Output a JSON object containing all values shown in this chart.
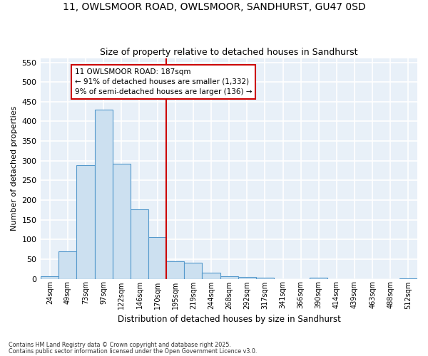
{
  "title1": "11, OWLSMOOR ROAD, OWLSMOOR, SANDHURST, GU47 0SD",
  "title2": "Size of property relative to detached houses in Sandhurst",
  "xlabel": "Distribution of detached houses by size in Sandhurst",
  "ylabel": "Number of detached properties",
  "bin_labels": [
    "24sqm",
    "49sqm",
    "73sqm",
    "97sqm",
    "122sqm",
    "146sqm",
    "170sqm",
    "195sqm",
    "219sqm",
    "244sqm",
    "268sqm",
    "292sqm",
    "317sqm",
    "341sqm",
    "366sqm",
    "390sqm",
    "414sqm",
    "439sqm",
    "463sqm",
    "488sqm",
    "512sqm"
  ],
  "bar_values": [
    7,
    70,
    288,
    430,
    293,
    177,
    105,
    45,
    40,
    16,
    7,
    4,
    2,
    0,
    0,
    2,
    0,
    0,
    0,
    0,
    1
  ],
  "bar_color": "#cce0f0",
  "bar_edge_color": "#5599cc",
  "vline_color": "#cc0000",
  "vline_x": 6.5,
  "annotation_text": "11 OWLSMOOR ROAD: 187sqm\n← 91% of detached houses are smaller (1,332)\n9% of semi-detached houses are larger (136) →",
  "annotation_box_color": "#ffffff",
  "annotation_box_edge": "#cc0000",
  "footnote1": "Contains HM Land Registry data © Crown copyright and database right 2025.",
  "footnote2": "Contains public sector information licensed under the Open Government Licence v3.0.",
  "ylim": [
    0,
    560
  ],
  "yticks": [
    0,
    50,
    100,
    150,
    200,
    250,
    300,
    350,
    400,
    450,
    500,
    550
  ],
  "fig_bg": "#ffffff",
  "ax_bg": "#e8f0f8",
  "grid_color": "#ffffff"
}
